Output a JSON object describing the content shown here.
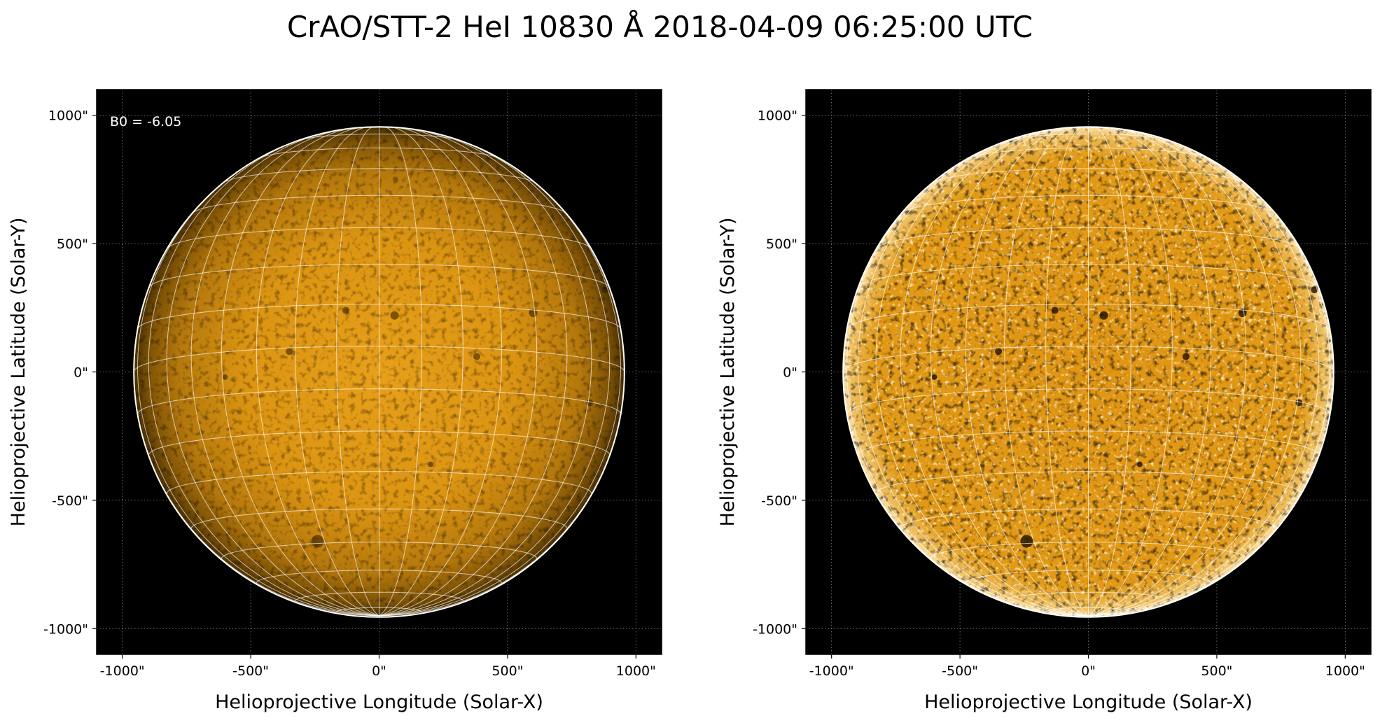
{
  "figure": {
    "title": "CrAO/STT-2 HeI 10830 Å 2018-04-09 06:25:00 UTC",
    "colors": {
      "background": "#000000",
      "sun_core": "#e29a14",
      "sun_limb": "#6b4304",
      "grid": "#ffffff"
    },
    "panels": [
      {
        "name": "left",
        "annotation": "B0 = -6.05",
        "x_axis_label": "Helioprojective Longitude (Solar-X)",
        "y_axis_label": "Helioprojective Latitude (Solar-Y)",
        "x_ticks": [
          "-1000\"",
          "-500\"",
          "0\"",
          "500\"",
          "1000\""
        ],
        "y_ticks": [
          "1000\"",
          "500\"",
          "0\"",
          "-500\"",
          "-1000\""
        ],
        "tick_values": [
          -1000,
          -500,
          0,
          500,
          1000
        ],
        "axis_range": [
          -1100,
          1100
        ],
        "solar_radius": 955,
        "b0_deg": -6.05,
        "limb_darkening": "strong"
      },
      {
        "name": "right",
        "annotation": "",
        "x_axis_label": "Helioprojective Longitude (Solar-X)",
        "y_axis_label": "Helioprojective Latitude (Solar-Y)",
        "x_ticks": [
          "-1000\"",
          "-500\"",
          "0\"",
          "500\"",
          "1000\""
        ],
        "y_ticks": [
          "1000\"",
          "500\"",
          "0\"",
          "-500\"",
          "-1000\""
        ],
        "tick_values": [
          -1000,
          -500,
          0,
          500,
          1000
        ],
        "axis_range": [
          -1100,
          1100
        ],
        "solar_radius": 955,
        "b0_deg": -6.05,
        "limb_darkening": "corrected"
      }
    ]
  }
}
